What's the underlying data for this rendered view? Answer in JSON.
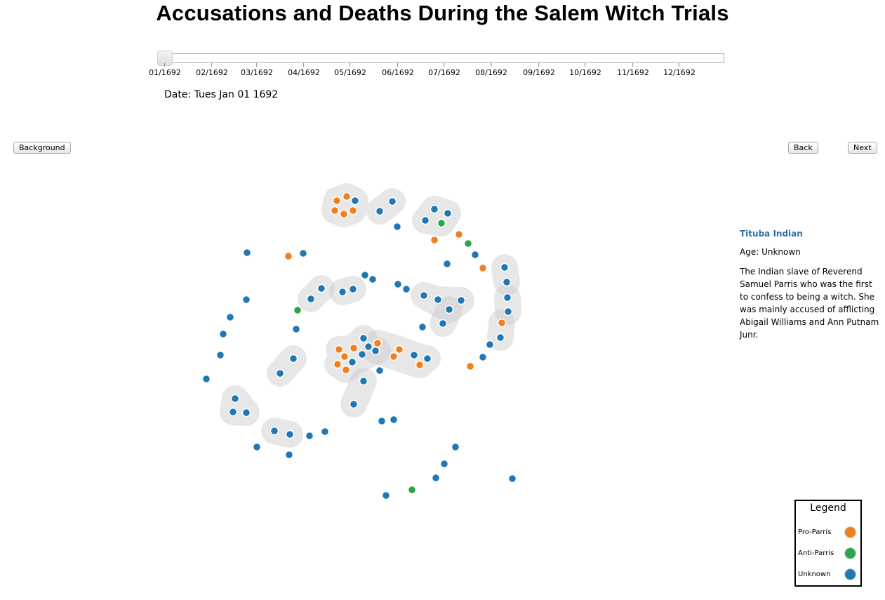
{
  "header": {
    "title": "Accusations and Deaths During the Salem Witch Trials"
  },
  "timeline": {
    "ticks": [
      "01/1692",
      "02/1692",
      "03/1692",
      "04/1692",
      "05/1692",
      "06/1692",
      "07/1692",
      "08/1692",
      "09/1692",
      "10/1692",
      "11/1692",
      "12/1692"
    ],
    "current_month_index": 0,
    "date_label": "Date: Tues Jan 01 1692"
  },
  "buttons": {
    "background": "Background",
    "back": "Back",
    "next": "Next"
  },
  "info": {
    "name": "Tituba Indian",
    "age": "Age: Unknown",
    "description": "The Indian slave of Reverend Samuel Parris who was the first to confess to being a witch. She was mainly accused of afflicting Abigail Williams and Ann Putnam Junr."
  },
  "legend": {
    "title": "Legend",
    "items": [
      {
        "label": "Pro-Parris",
        "color": "#f07f1e"
      },
      {
        "label": "Anti-Parris",
        "color": "#2aa64a"
      },
      {
        "label": "Unknown",
        "color": "#1f77b4"
      }
    ]
  },
  "colors": {
    "pro": "#f07f1e",
    "anti": "#2aa64a",
    "unknown": "#1f77b4",
    "hull": "#cccccc"
  }
}
